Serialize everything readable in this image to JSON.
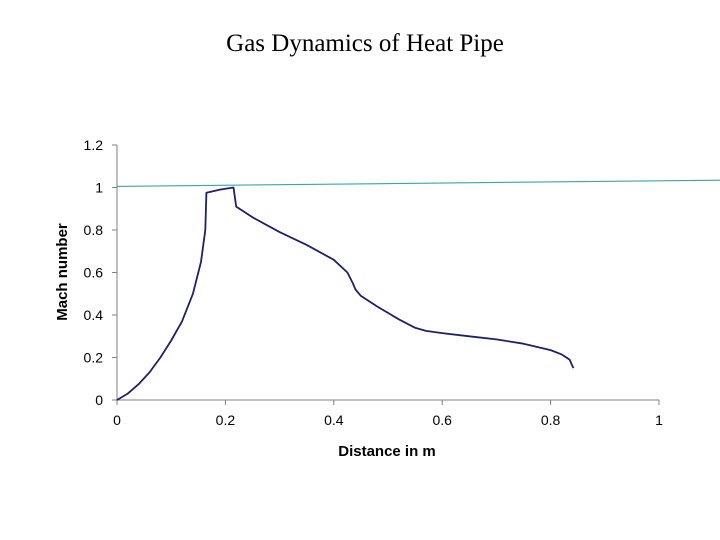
{
  "title": "Gas Dynamics of Heat Pipe",
  "colors": {
    "series": "#1f1f6b",
    "reference": "#3aa6a6",
    "axis": "#808080"
  },
  "chart_data": {
    "type": "line",
    "title": "Gas Dynamics of Heat Pipe",
    "xlabel": "Distance in m",
    "ylabel": "Mach number",
    "xlim": [
      0,
      1
    ],
    "ylim": [
      0,
      1.2
    ],
    "xticks": [
      "0",
      "0.2",
      "0.4",
      "0.6",
      "0.8",
      "1"
    ],
    "yticks": [
      "0",
      "0.2",
      "0.4",
      "0.6",
      "0.8",
      "1",
      "1.2"
    ],
    "grid": false,
    "legend": "none",
    "series": [
      {
        "x": [
          0,
          0.02,
          0.04,
          0.06,
          0.08,
          0.1,
          0.12,
          0.14,
          0.155,
          0.163,
          0.165,
          0.19,
          0.215,
          0.22,
          0.25,
          0.3,
          0.35,
          0.4,
          0.425,
          0.435,
          0.44,
          0.45,
          0.48,
          0.5,
          0.52,
          0.55,
          0.57,
          0.6,
          0.65,
          0.7,
          0.75,
          0.8,
          0.82,
          0.835,
          0.842
        ],
        "y": [
          0,
          0.03,
          0.075,
          0.13,
          0.2,
          0.28,
          0.37,
          0.5,
          0.65,
          0.8,
          0.975,
          0.99,
          1.0,
          0.91,
          0.86,
          0.79,
          0.73,
          0.66,
          0.6,
          0.55,
          0.52,
          0.49,
          0.44,
          0.41,
          0.38,
          0.34,
          0.325,
          0.315,
          0.3,
          0.285,
          0.265,
          0.235,
          0.215,
          0.19,
          0.15
        ]
      },
      {
        "x": [
          0,
          1.12
        ],
        "y": [
          1.005,
          1.035
        ]
      }
    ]
  }
}
